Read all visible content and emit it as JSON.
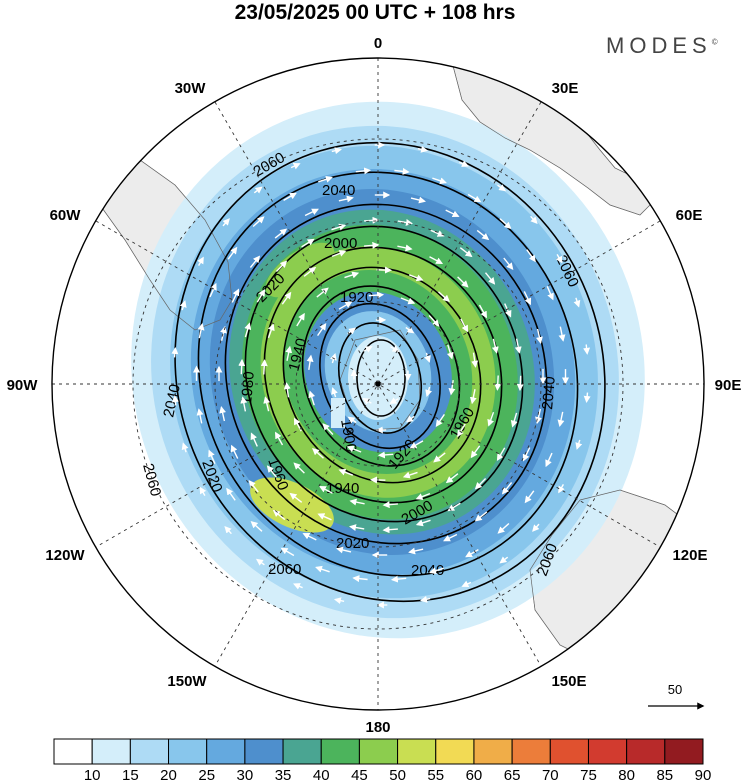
{
  "title": "23/05/2025  00 UTC  + 108 hrs",
  "logo": "MODES",
  "logo_mark": "©",
  "longitude_labels": [
    "0",
    "30E",
    "60E",
    "90E",
    "120E",
    "150E",
    "180",
    "150W",
    "120W",
    "90W",
    "60W",
    "30W"
  ],
  "contour_labels": [
    "1900",
    "1920",
    "1940",
    "1960",
    "1980",
    "2000",
    "2020",
    "2040",
    "2060"
  ],
  "reference_vector": {
    "value": "50"
  },
  "colorbar": {
    "ticks": [
      "10",
      "15",
      "20",
      "25",
      "30",
      "35",
      "40",
      "45",
      "50",
      "55",
      "60",
      "65",
      "70",
      "75",
      "80",
      "85",
      "90"
    ],
    "colors": [
      "#ffffff",
      "#d4eefa",
      "#aedbf5",
      "#88c6ec",
      "#64a9df",
      "#4e8fcd",
      "#4aa592",
      "#4cb45c",
      "#8ccd4e",
      "#c9de52",
      "#f2da54",
      "#f0ad48",
      "#ec7d3a",
      "#e0512f",
      "#d23b2f",
      "#b82a2a",
      "#921b20"
    ]
  },
  "map_data": {
    "projection": "south polar stereographic",
    "variable": "geopotential height contours with wind speed shading and wind vectors",
    "contour_interval": 20
  }
}
